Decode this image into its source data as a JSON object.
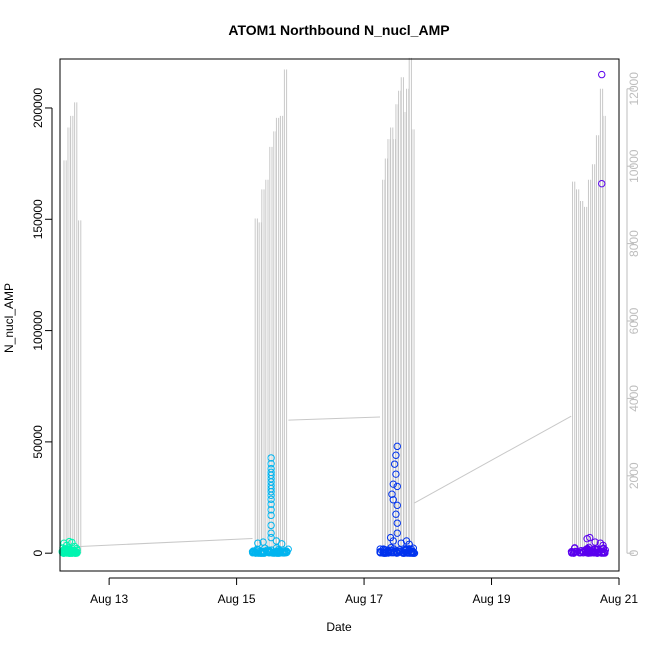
{
  "chart_data": {
    "type": "scatter",
    "title": "ATOM1 Northbound N_nucl_AMP",
    "xlabel": "Date",
    "ylabel": "N_nucl_AMP",
    "x_ticks": [
      "Aug 13",
      "Aug 15",
      "Aug 17",
      "Aug 19",
      "Aug 21"
    ],
    "xlim": [
      "2023-08-12 05:30",
      "2023-08-21 00:00"
    ],
    "y_ticks": [
      0,
      50000,
      100000,
      150000,
      200000
    ],
    "ylim": [
      -8000,
      222000
    ],
    "y2_ticks": [
      0,
      2000,
      4000,
      6000,
      8000,
      10000,
      12000
    ],
    "y2lim": [
      -460,
      12770
    ],
    "y2_color": "#bdbdbd",
    "line_color": "#c8c8c8",
    "grid": false,
    "series": [
      {
        "color": "#00f5b0",
        "x_range": [
          "2023-08-12 06:20",
          "2023-08-12 12:00"
        ],
        "points": [
          {
            "x": "2023-08-12 07:00",
            "y": 4500
          },
          {
            "x": "2023-08-12 08:00",
            "y": 3500
          },
          {
            "x": "2023-08-12 09:00",
            "y": 5200
          },
          {
            "x": "2023-08-12 10:00",
            "y": 4800
          },
          {
            "x": "2023-08-12 11:00",
            "y": 3000
          }
        ],
        "cluster_max": 2600
      },
      {
        "color": "#00b4ef",
        "x_range": [
          "2023-08-15 06:00",
          "2023-08-15 19:30"
        ],
        "points": [
          {
            "x": "2023-08-15 13:00",
            "y": 42800
          },
          {
            "x": "2023-08-15 13:00",
            "y": 40200
          },
          {
            "x": "2023-08-15 13:00",
            "y": 38000
          },
          {
            "x": "2023-08-15 13:00",
            "y": 36300
          },
          {
            "x": "2023-08-15 13:00",
            "y": 35000
          },
          {
            "x": "2023-08-15 13:00",
            "y": 33500
          },
          {
            "x": "2023-08-15 13:00",
            "y": 32000
          },
          {
            "x": "2023-08-15 13:00",
            "y": 30400
          },
          {
            "x": "2023-08-15 13:00",
            "y": 29000
          },
          {
            "x": "2023-08-15 13:00",
            "y": 27600
          },
          {
            "x": "2023-08-15 13:00",
            "y": 26000
          },
          {
            "x": "2023-08-15 13:00",
            "y": 24200
          },
          {
            "x": "2023-08-15 13:00",
            "y": 22000
          },
          {
            "x": "2023-08-15 13:00",
            "y": 19500
          },
          {
            "x": "2023-08-15 13:00",
            "y": 17000
          },
          {
            "x": "2023-08-15 13:00",
            "y": 12500
          },
          {
            "x": "2023-08-15 13:00",
            "y": 9000
          },
          {
            "x": "2023-08-15 13:00",
            "y": 7000
          },
          {
            "x": "2023-08-15 08:00",
            "y": 4500
          },
          {
            "x": "2023-08-15 10:00",
            "y": 5000
          },
          {
            "x": "2023-08-15 15:00",
            "y": 5500
          },
          {
            "x": "2023-08-15 17:00",
            "y": 4200
          }
        ],
        "cluster_max": 2800
      },
      {
        "color": "#0033ee",
        "x_range": [
          "2023-08-17 06:00",
          "2023-08-17 19:00"
        ],
        "points": [
          {
            "x": "2023-08-17 12:30",
            "y": 48000
          },
          {
            "x": "2023-08-17 12:00",
            "y": 44000
          },
          {
            "x": "2023-08-17 11:30",
            "y": 40000
          },
          {
            "x": "2023-08-17 12:00",
            "y": 35500
          },
          {
            "x": "2023-08-17 11:00",
            "y": 31000
          },
          {
            "x": "2023-08-17 12:30",
            "y": 30000
          },
          {
            "x": "2023-08-17 10:30",
            "y": 26500
          },
          {
            "x": "2023-08-17 11:00",
            "y": 24000
          },
          {
            "x": "2023-08-17 12:30",
            "y": 21500
          },
          {
            "x": "2023-08-17 12:00",
            "y": 17500
          },
          {
            "x": "2023-08-17 12:30",
            "y": 13500
          },
          {
            "x": "2023-08-17 12:30",
            "y": 9000
          },
          {
            "x": "2023-08-17 10:00",
            "y": 7000
          },
          {
            "x": "2023-08-17 11:00",
            "y": 5500
          },
          {
            "x": "2023-08-17 14:00",
            "y": 4500
          },
          {
            "x": "2023-08-17 16:00",
            "y": 5500
          },
          {
            "x": "2023-08-17 17:00",
            "y": 4000
          }
        ],
        "cluster_max": 3000
      },
      {
        "color": "#5a00ee",
        "x_range": [
          "2023-08-20 06:00",
          "2023-08-20 19:00"
        ],
        "points": [
          {
            "x": "2023-08-20 17:30",
            "y": 215000
          },
          {
            "x": "2023-08-20 17:30",
            "y": 166000
          },
          {
            "x": "2023-08-20 12:00",
            "y": 6500
          },
          {
            "x": "2023-08-20 13:00",
            "y": 7000
          },
          {
            "x": "2023-08-20 15:00",
            "y": 5000
          },
          {
            "x": "2023-08-20 17:00",
            "y": 4500
          },
          {
            "x": "2023-08-20 18:00",
            "y": 3500
          }
        ],
        "cluster_max": 3000
      }
    ],
    "secondary_line": {
      "color": "#c8c8c8",
      "connectors": [
        {
          "x": [
            "2023-08-12 12:00",
            "2023-08-15 06:00"
          ],
          "y": [
            170,
            380
          ]
        },
        {
          "x": [
            "2023-08-15 19:30",
            "2023-08-17 06:00"
          ],
          "y": [
            3440,
            3520
          ]
        },
        {
          "x": [
            "2023-08-17 19:00",
            "2023-08-20 06:00"
          ],
          "y": [
            1300,
            3540
          ]
        }
      ],
      "spikes": [
        {
          "x": "2023-08-12 07:00",
          "y": 10150
        },
        {
          "x": "2023-08-12 08:30",
          "y": 11000
        },
        {
          "x": "2023-08-12 09:30",
          "y": 11300
        },
        {
          "x": "2023-08-12 11:00",
          "y": 11650
        },
        {
          "x": "2023-08-12 12:30",
          "y": 8600
        },
        {
          "x": "2023-08-15 07:00",
          "y": 8650
        },
        {
          "x": "2023-08-15 08:30",
          "y": 8550
        },
        {
          "x": "2023-08-15 09:30",
          "y": 9400
        },
        {
          "x": "2023-08-15 11:00",
          "y": 9650
        },
        {
          "x": "2023-08-15 12:30",
          "y": 10500
        },
        {
          "x": "2023-08-15 14:00",
          "y": 10900
        },
        {
          "x": "2023-08-15 15:00",
          "y": 11250
        },
        {
          "x": "2023-08-15 16:30",
          "y": 11300
        },
        {
          "x": "2023-08-15 18:00",
          "y": 12500
        },
        {
          "x": "2023-08-17 07:00",
          "y": 9650
        },
        {
          "x": "2023-08-17 08:00",
          "y": 10200
        },
        {
          "x": "2023-08-17 09:00",
          "y": 10700
        },
        {
          "x": "2023-08-17 10:00",
          "y": 11000
        },
        {
          "x": "2023-08-17 11:00",
          "y": 10700
        },
        {
          "x": "2023-08-17 12:00",
          "y": 11600
        },
        {
          "x": "2023-08-17 13:00",
          "y": 11950
        },
        {
          "x": "2023-08-17 14:00",
          "y": 12300
        },
        {
          "x": "2023-08-17 15:00",
          "y": 11400
        },
        {
          "x": "2023-08-17 16:00",
          "y": 12000
        },
        {
          "x": "2023-08-17 17:00",
          "y": 12800
        },
        {
          "x": "2023-08-17 18:00",
          "y": 10950
        },
        {
          "x": "2023-08-20 06:30",
          "y": 9600
        },
        {
          "x": "2023-08-20 08:00",
          "y": 9400
        },
        {
          "x": "2023-08-20 09:30",
          "y": 9100
        },
        {
          "x": "2023-08-20 11:00",
          "y": 8950
        },
        {
          "x": "2023-08-20 12:30",
          "y": 9650
        },
        {
          "x": "2023-08-20 14:00",
          "y": 10050
        },
        {
          "x": "2023-08-20 15:30",
          "y": 10800
        },
        {
          "x": "2023-08-20 17:00",
          "y": 12000
        },
        {
          "x": "2023-08-20 18:00",
          "y": 11300
        }
      ]
    }
  }
}
